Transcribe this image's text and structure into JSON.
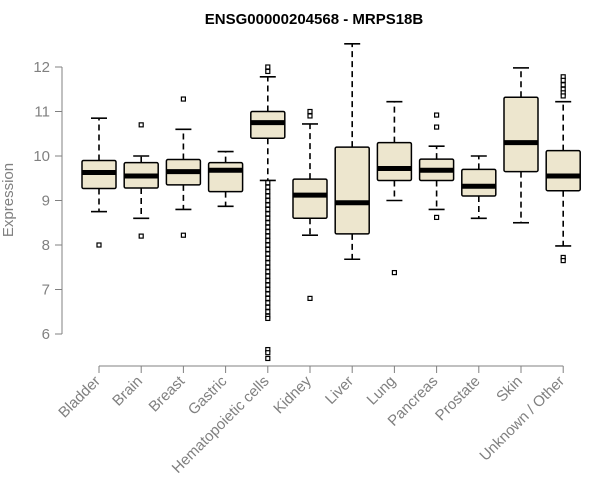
{
  "chart_data": {
    "type": "boxplot",
    "title": "ENSG00000204568 - MRPS18B",
    "xlabel": "",
    "ylabel": "Expression",
    "ylim": [
      5.3,
      12.6
    ],
    "yticks": [
      6,
      7,
      8,
      9,
      10,
      11,
      12
    ],
    "box_fill": "#ede6ce",
    "axis_color": "#808080",
    "categories": [
      "Bladder",
      "Brain",
      "Breast",
      "Gastric",
      "Hematopoietic cells",
      "Kidney",
      "Liver",
      "Lung",
      "Pancreas",
      "Prostate",
      "Skin",
      "Unknown / Other"
    ],
    "boxes": [
      {
        "name": "Bladder",
        "whisker_low": 8.75,
        "q1": 9.27,
        "median": 9.63,
        "q3": 9.9,
        "whisker_high": 10.85,
        "outliers": [
          8.0
        ]
      },
      {
        "name": "Brain",
        "whisker_low": 8.6,
        "q1": 9.28,
        "median": 9.55,
        "q3": 9.85,
        "whisker_high": 10.0,
        "outliers": [
          10.7,
          8.2
        ]
      },
      {
        "name": "Breast",
        "whisker_low": 8.8,
        "q1": 9.35,
        "median": 9.65,
        "q3": 9.92,
        "whisker_high": 10.6,
        "outliers": [
          11.28,
          8.22
        ]
      },
      {
        "name": "Gastric",
        "whisker_low": 8.87,
        "q1": 9.2,
        "median": 9.68,
        "q3": 9.85,
        "whisker_high": 10.1,
        "outliers": []
      },
      {
        "name": "Hematopoietic cells",
        "whisker_low": 9.45,
        "q1": 10.4,
        "median": 10.75,
        "q3": 11.0,
        "whisker_high": 11.78,
        "outliers": [
          12.0,
          11.9,
          9.4,
          9.3,
          9.2,
          9.1,
          9.0,
          8.9,
          8.8,
          8.7,
          8.6,
          8.5,
          8.4,
          8.3,
          8.2,
          8.1,
          8.0,
          7.9,
          7.8,
          7.7,
          7.6,
          7.5,
          7.4,
          7.3,
          7.2,
          7.1,
          7.0,
          6.9,
          6.8,
          6.7,
          6.6,
          6.5,
          6.4,
          6.35,
          5.65,
          5.58,
          5.45
        ]
      },
      {
        "name": "Kidney",
        "whisker_low": 8.22,
        "q1": 8.6,
        "median": 9.12,
        "q3": 9.48,
        "whisker_high": 10.72,
        "outliers": [
          11.0,
          10.9,
          6.8
        ]
      },
      {
        "name": "Liver",
        "whisker_low": 7.68,
        "q1": 8.25,
        "median": 8.95,
        "q3": 10.2,
        "whisker_high": 12.52,
        "outliers": []
      },
      {
        "name": "Lung",
        "whisker_low": 9.0,
        "q1": 9.45,
        "median": 9.72,
        "q3": 10.3,
        "whisker_high": 11.22,
        "outliers": [
          7.38
        ]
      },
      {
        "name": "Pancreas",
        "whisker_low": 8.8,
        "q1": 9.45,
        "median": 9.68,
        "q3": 9.93,
        "whisker_high": 10.22,
        "outliers": [
          10.92,
          10.65,
          8.62
        ]
      },
      {
        "name": "Prostate",
        "whisker_low": 8.6,
        "q1": 9.1,
        "median": 9.32,
        "q3": 9.7,
        "whisker_high": 10.0,
        "outliers": []
      },
      {
        "name": "Skin",
        "whisker_low": 8.5,
        "q1": 9.65,
        "median": 10.3,
        "q3": 11.32,
        "whisker_high": 11.98,
        "outliers": []
      },
      {
        "name": "Unknown / Other",
        "whisker_low": 7.98,
        "q1": 9.22,
        "median": 9.55,
        "q3": 10.12,
        "whisker_high": 11.22,
        "outliers": [
          11.78,
          11.7,
          11.6,
          11.5,
          11.42,
          11.35,
          7.72,
          7.65
        ]
      }
    ]
  }
}
